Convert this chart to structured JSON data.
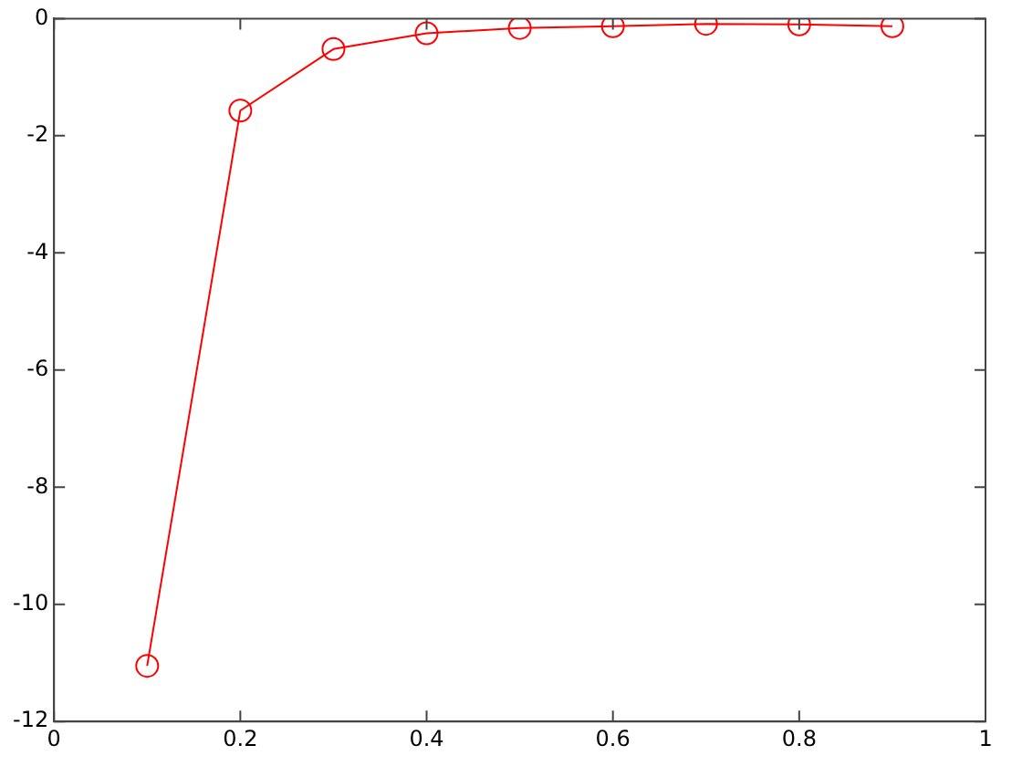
{
  "chart_data": {
    "type": "line",
    "x": [
      0.1,
      0.2,
      0.3,
      0.4,
      0.5,
      0.6,
      0.7,
      0.8,
      0.9
    ],
    "series": [
      {
        "color": "#ff0000",
        "values": [
          -11.05,
          -1.57,
          -0.52,
          -0.25,
          -0.16,
          -0.13,
          -0.09,
          -0.1,
          -0.13
        ]
      }
    ],
    "xlim": [
      0,
      1
    ],
    "xticks": [
      0,
      0.2,
      0.4,
      0.6,
      0.8,
      1
    ],
    "ylim": [
      -12,
      0
    ],
    "yticks": [
      -12,
      -10,
      -8,
      -6,
      -4,
      -2,
      0
    ],
    "grid": false,
    "legend": false,
    "marker": "circle",
    "line_style": "solid"
  }
}
